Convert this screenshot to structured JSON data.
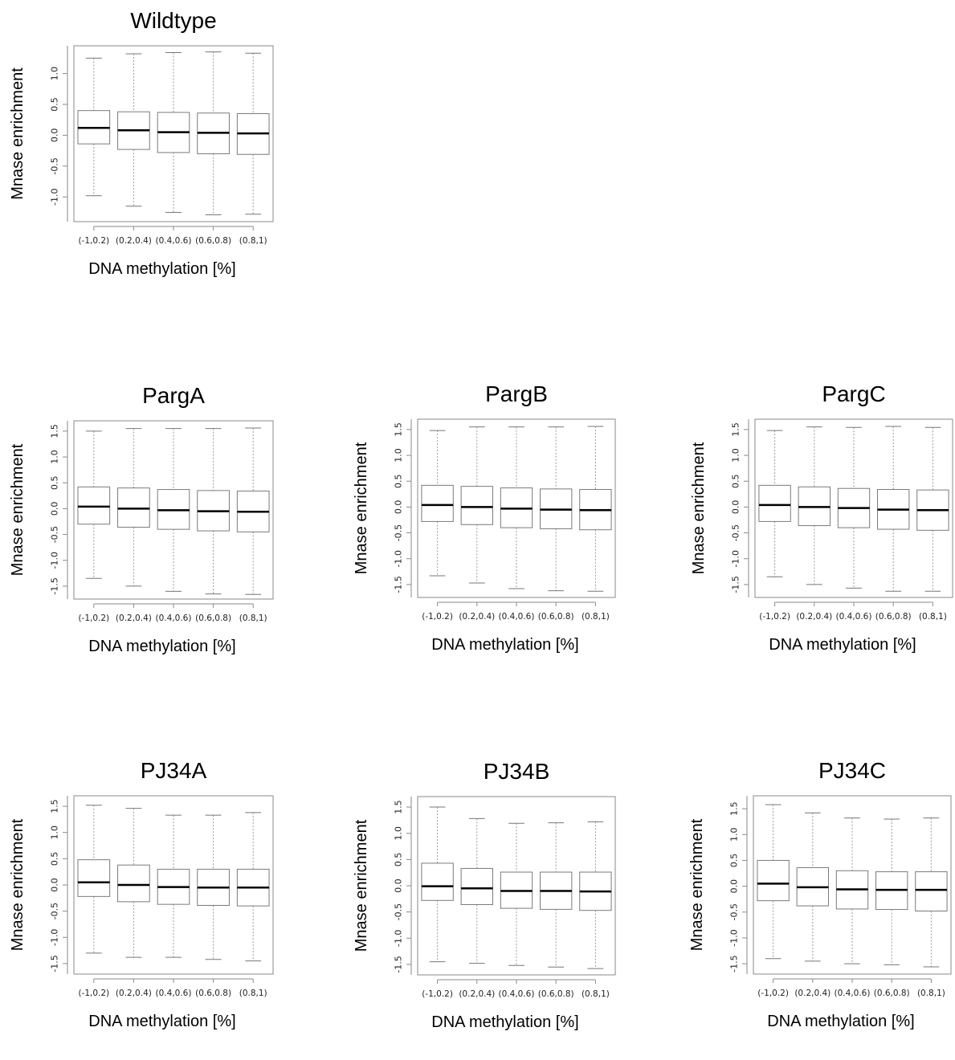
{
  "chart_data": [
    {
      "type": "boxplot",
      "title": "Wildtype",
      "xlabel": "DNA methylation [%]",
      "ylabel": "Mnase enrichment",
      "ylim": [
        -1.4,
        1.45
      ],
      "yticks": [
        "-1.0",
        "-0.5",
        "0.0",
        "0.5",
        "1.0"
      ],
      "categories": [
        "(-1,0.2)",
        "(0.2,0.4)",
        "(0.4,0.6)",
        "(0.6,0.8)",
        "(0.8,1)"
      ],
      "boxes": [
        {
          "whisker_low": -0.98,
          "q1": -0.14,
          "median": 0.12,
          "q3": 0.4,
          "whisker_high": 1.25
        },
        {
          "whisker_low": -1.15,
          "q1": -0.23,
          "median": 0.08,
          "q3": 0.38,
          "whisker_high": 1.32
        },
        {
          "whisker_low": -1.25,
          "q1": -0.28,
          "median": 0.05,
          "q3": 0.37,
          "whisker_high": 1.34
        },
        {
          "whisker_low": -1.29,
          "q1": -0.3,
          "median": 0.04,
          "q3": 0.36,
          "whisker_high": 1.35
        },
        {
          "whisker_low": -1.28,
          "q1": -0.31,
          "median": 0.03,
          "q3": 0.35,
          "whisker_high": 1.33
        }
      ]
    },
    {
      "type": "boxplot",
      "title": "PargA",
      "xlabel": "DNA methylation [%]",
      "ylabel": "Mnase enrichment",
      "ylim": [
        -1.75,
        1.7
      ],
      "yticks": [
        "-1.5",
        "-1.0",
        "-0.5",
        "0.0",
        "0.5",
        "1.0",
        "1.5"
      ],
      "categories": [
        "(-1,0.2)",
        "(0.2,0.4)",
        "(0.4,0.6)",
        "(0.6,0.8)",
        "(0.8,1)"
      ],
      "boxes": [
        {
          "whisker_low": -1.35,
          "q1": -0.3,
          "median": 0.04,
          "q3": 0.42,
          "whisker_high": 1.5
        },
        {
          "whisker_low": -1.5,
          "q1": -0.36,
          "median": 0.0,
          "q3": 0.4,
          "whisker_high": 1.55
        },
        {
          "whisker_low": -1.6,
          "q1": -0.4,
          "median": -0.03,
          "q3": 0.37,
          "whisker_high": 1.55
        },
        {
          "whisker_low": -1.65,
          "q1": -0.43,
          "median": -0.05,
          "q3": 0.35,
          "whisker_high": 1.55
        },
        {
          "whisker_low": -1.66,
          "q1": -0.45,
          "median": -0.06,
          "q3": 0.34,
          "whisker_high": 1.56
        }
      ]
    },
    {
      "type": "boxplot",
      "title": "PargB",
      "xlabel": "DNA methylation [%]",
      "ylabel": "Mnase enrichment",
      "ylim": [
        -1.75,
        1.7
      ],
      "yticks": [
        "-1.5",
        "-1.0",
        "-0.5",
        "0.0",
        "0.5",
        "1.0",
        "1.5"
      ],
      "categories": [
        "(-1,0.2)",
        "(0.2,0.4)",
        "(0.4,0.6)",
        "(0.6,0.8)",
        "(0.8,1)"
      ],
      "boxes": [
        {
          "whisker_low": -1.33,
          "q1": -0.28,
          "median": 0.04,
          "q3": 0.42,
          "whisker_high": 1.48
        },
        {
          "whisker_low": -1.47,
          "q1": -0.34,
          "median": 0.0,
          "q3": 0.4,
          "whisker_high": 1.55
        },
        {
          "whisker_low": -1.58,
          "q1": -0.4,
          "median": -0.03,
          "q3": 0.37,
          "whisker_high": 1.55
        },
        {
          "whisker_low": -1.62,
          "q1": -0.42,
          "median": -0.05,
          "q3": 0.35,
          "whisker_high": 1.55
        },
        {
          "whisker_low": -1.63,
          "q1": -0.44,
          "median": -0.06,
          "q3": 0.34,
          "whisker_high": 1.56
        }
      ]
    },
    {
      "type": "boxplot",
      "title": "PargC",
      "xlabel": "DNA methylation [%]",
      "ylabel": "Mnase enrichment",
      "ylim": [
        -1.75,
        1.7
      ],
      "yticks": [
        "-1.5",
        "-1.0",
        "-0.5",
        "0.0",
        "0.5",
        "1.0",
        "1.5"
      ],
      "categories": [
        "(-1,0.2)",
        "(0.2,0.4)",
        "(0.4,0.6)",
        "(0.6,0.8)",
        "(0.8,1)"
      ],
      "boxes": [
        {
          "whisker_low": -1.35,
          "q1": -0.28,
          "median": 0.04,
          "q3": 0.42,
          "whisker_high": 1.48
        },
        {
          "whisker_low": -1.5,
          "q1": -0.36,
          "median": 0.0,
          "q3": 0.39,
          "whisker_high": 1.55
        },
        {
          "whisker_low": -1.57,
          "q1": -0.4,
          "median": -0.02,
          "q3": 0.36,
          "whisker_high": 1.54
        },
        {
          "whisker_low": -1.63,
          "q1": -0.43,
          "median": -0.05,
          "q3": 0.34,
          "whisker_high": 1.56
        },
        {
          "whisker_low": -1.63,
          "q1": -0.45,
          "median": -0.06,
          "q3": 0.33,
          "whisker_high": 1.54
        }
      ]
    },
    {
      "type": "boxplot",
      "title": "PJ34A",
      "xlabel": "DNA methylation [%]",
      "ylabel": "Mnase enrichment",
      "ylim": [
        -1.7,
        1.7
      ],
      "yticks": [
        "-1.5",
        "-1.0",
        "-0.5",
        "0.0",
        "0.5",
        "1.0",
        "1.5"
      ],
      "categories": [
        "(-1,0.2)",
        "(0.2,0.4)",
        "(0.4,0.6)",
        "(0.6,0.8)",
        "(0.8,1)"
      ],
      "boxes": [
        {
          "whisker_low": -1.3,
          "q1": -0.22,
          "median": 0.05,
          "q3": 0.48,
          "whisker_high": 1.52
        },
        {
          "whisker_low": -1.38,
          "q1": -0.32,
          "median": 0.0,
          "q3": 0.38,
          "whisker_high": 1.46
        },
        {
          "whisker_low": -1.38,
          "q1": -0.37,
          "median": -0.04,
          "q3": 0.3,
          "whisker_high": 1.33
        },
        {
          "whisker_low": -1.42,
          "q1": -0.39,
          "median": -0.05,
          "q3": 0.3,
          "whisker_high": 1.33
        },
        {
          "whisker_low": -1.45,
          "q1": -0.4,
          "median": -0.05,
          "q3": 0.3,
          "whisker_high": 1.38
        }
      ]
    },
    {
      "type": "boxplot",
      "title": "PJ34B",
      "xlabel": "DNA methylation [%]",
      "ylabel": "Mnase enrichment",
      "ylim": [
        -1.7,
        1.7
      ],
      "yticks": [
        "-1.5",
        "-1.0",
        "-0.5",
        "0.0",
        "0.5",
        "1.0",
        "1.5"
      ],
      "categories": [
        "(-1,0.2)",
        "(0.2,0.4)",
        "(0.4,0.6)",
        "(0.6,0.8)",
        "(0.8,1)"
      ],
      "boxes": [
        {
          "whisker_low": -1.45,
          "q1": -0.28,
          "median": -0.01,
          "q3": 0.43,
          "whisker_high": 1.5
        },
        {
          "whisker_low": -1.48,
          "q1": -0.36,
          "median": -0.05,
          "q3": 0.33,
          "whisker_high": 1.28
        },
        {
          "whisker_low": -1.52,
          "q1": -0.43,
          "median": -0.1,
          "q3": 0.26,
          "whisker_high": 1.19
        },
        {
          "whisker_low": -1.55,
          "q1": -0.45,
          "median": -0.1,
          "q3": 0.26,
          "whisker_high": 1.2
        },
        {
          "whisker_low": -1.58,
          "q1": -0.47,
          "median": -0.11,
          "q3": 0.26,
          "whisker_high": 1.22
        }
      ]
    },
    {
      "type": "boxplot",
      "title": "PJ34C",
      "xlabel": "DNA methylation [%]",
      "ylabel": "Mnase enrichment",
      "ylim": [
        -1.7,
        1.75
      ],
      "yticks": [
        "-1.5",
        "-1.0",
        "-0.5",
        "0.0",
        "0.5",
        "1.0",
        "1.5"
      ],
      "categories": [
        "(-1,0.2)",
        "(0.2,0.4)",
        "(0.4,0.6)",
        "(0.6,0.8)",
        "(0.8,1)"
      ],
      "boxes": [
        {
          "whisker_low": -1.4,
          "q1": -0.28,
          "median": 0.05,
          "q3": 0.5,
          "whisker_high": 1.58
        },
        {
          "whisker_low": -1.45,
          "q1": -0.38,
          "median": -0.02,
          "q3": 0.36,
          "whisker_high": 1.42
        },
        {
          "whisker_low": -1.5,
          "q1": -0.44,
          "median": -0.06,
          "q3": 0.3,
          "whisker_high": 1.32
        },
        {
          "whisker_low": -1.52,
          "q1": -0.45,
          "median": -0.07,
          "q3": 0.28,
          "whisker_high": 1.3
        },
        {
          "whisker_low": -1.56,
          "q1": -0.48,
          "median": -0.07,
          "q3": 0.28,
          "whisker_high": 1.32
        }
      ]
    }
  ]
}
